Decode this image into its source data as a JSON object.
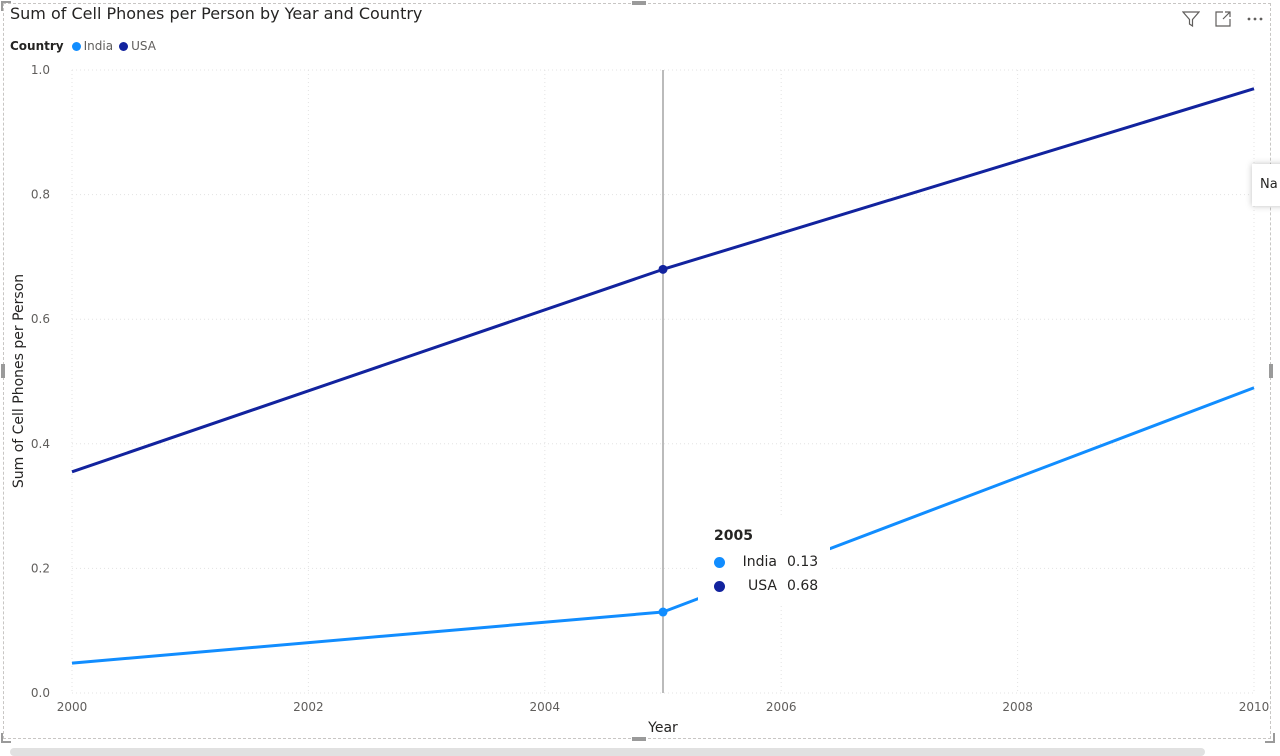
{
  "chart_data": {
    "type": "line",
    "title": "Sum of Cell Phones per Person by Year and Country",
    "xlabel": "Year",
    "ylabel": "Sum of Cell Phones per Person",
    "xlim": [
      2000,
      2010
    ],
    "ylim": [
      0,
      1.0
    ],
    "x_ticks": [
      "2000",
      "2002",
      "2004",
      "2006",
      "2008",
      "2010"
    ],
    "y_ticks": [
      "0.0",
      "0.2",
      "0.4",
      "0.6",
      "0.8",
      "1.0"
    ],
    "grid": true,
    "legend": {
      "title": "Country",
      "placement": "top-left"
    },
    "series": [
      {
        "name": "India",
        "color": "#118DFF",
        "x": [
          2000,
          2005,
          2010
        ],
        "y": [
          0.048,
          0.13,
          0.49
        ]
      },
      {
        "name": "USA",
        "color": "#12239E",
        "x": [
          2000,
          2005,
          2010
        ],
        "y": [
          0.355,
          0.68,
          0.97
        ]
      }
    ],
    "hover": {
      "x": 2005,
      "title": "2005",
      "rows": [
        {
          "name": "India",
          "value": "0.13",
          "color": "#118DFF"
        },
        {
          "name": "USA",
          "value": "0.68",
          "color": "#12239E"
        }
      ]
    }
  },
  "header_icons": [
    "filter-icon",
    "focus-mode-icon",
    "more-options-icon"
  ],
  "side_tooltip": {
    "text": "Na"
  }
}
